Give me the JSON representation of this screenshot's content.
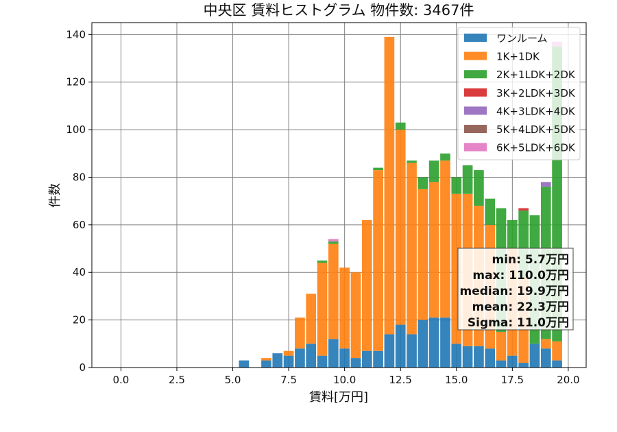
{
  "chart_data": {
    "type": "bar",
    "title": "中央区 賃料ヒストグラム 物件数: 3467件",
    "xlabel": "賃料[万円]",
    "ylabel": "件数",
    "xlim": [
      -1.3,
      20.8
    ],
    "ylim": [
      0,
      145
    ],
    "xticks": [
      "0.0",
      "2.5",
      "5.0",
      "7.5",
      "10.0",
      "12.5",
      "15.0",
      "17.5",
      "20.0"
    ],
    "yticks": [
      "0",
      "20",
      "40",
      "60",
      "80",
      "100",
      "120",
      "140"
    ],
    "grid": true,
    "stacked": true,
    "bin_width": 0.5,
    "legend_position": "top-right",
    "x": [
      5.5,
      6.0,
      6.5,
      7.0,
      7.5,
      8.0,
      8.5,
      9.0,
      9.5,
      10.0,
      10.5,
      11.0,
      11.5,
      12.0,
      12.5,
      13.0,
      13.5,
      14.0,
      14.5,
      15.0,
      15.5,
      16.0,
      16.5,
      17.0,
      17.5,
      18.0,
      18.5,
      19.0,
      19.5
    ],
    "series": [
      {
        "name": "ワンルーム",
        "color": "#1f77b4",
        "values": [
          3,
          0,
          3,
          6,
          5,
          8,
          10,
          5,
          12,
          8,
          4,
          7,
          7,
          14,
          18,
          14,
          20,
          21,
          21,
          10,
          9,
          9,
          8,
          3,
          5,
          2,
          10,
          8,
          3
        ]
      },
      {
        "name": "1K+1DK",
        "color": "#ff7f0e",
        "values": [
          0,
          0,
          1,
          0,
          2,
          13,
          21,
          39,
          40,
          34,
          36,
          55,
          76,
          125,
          82,
          72,
          55,
          57,
          66,
          63,
          64,
          59,
          52,
          12,
          45,
          36,
          0,
          4,
          8
        ]
      },
      {
        "name": "2K+1LDK+2DK",
        "color": "#2ca02c",
        "values": [
          0,
          0,
          0,
          0,
          0,
          0,
          0,
          1,
          1,
          0,
          0,
          0,
          1,
          0,
          3,
          1,
          5,
          9,
          3,
          7,
          12,
          15,
          11,
          52,
          12,
          28,
          54,
          64,
          124
        ]
      },
      {
        "name": "3K+2LDK+3DK",
        "color": "#d62728",
        "values": [
          0,
          0,
          0,
          0,
          0,
          0,
          0,
          0,
          0,
          0,
          0,
          0,
          0,
          0,
          0,
          0,
          0,
          0,
          0,
          0,
          0,
          0,
          0,
          0,
          0,
          1,
          0,
          0,
          0
        ]
      },
      {
        "name": "4K+3LDK+4DK",
        "color": "#9467bd",
        "values": [
          0,
          0,
          0,
          0,
          0,
          0,
          0,
          0,
          0,
          0,
          0,
          0,
          0,
          0,
          0,
          0,
          0,
          0,
          0,
          0,
          0,
          0,
          0,
          0,
          0,
          0,
          0,
          2,
          0
        ]
      },
      {
        "name": "5K+4LDK+5DK",
        "color": "#8c564b",
        "values": [
          0,
          0,
          0,
          0,
          0,
          0,
          0,
          0,
          0,
          0,
          0,
          0,
          0,
          0,
          0,
          0,
          0,
          0,
          0,
          0,
          0,
          0,
          0,
          0,
          0,
          0,
          0,
          0,
          0
        ]
      },
      {
        "name": "6K+5LDK+6DK",
        "color": "#e377c2",
        "values": [
          0,
          0,
          0,
          0,
          0,
          0,
          0,
          0,
          1,
          0,
          0,
          0,
          0,
          0,
          0,
          0,
          0,
          0,
          0,
          0,
          0,
          0,
          0,
          0,
          0,
          0,
          0,
          0,
          2
        ]
      }
    ],
    "stats": [
      "min: 5.7万円",
      "max: 110.0万円",
      "median: 19.9万円",
      "mean: 22.3万円",
      "Sigma: 11.0万円"
    ]
  }
}
